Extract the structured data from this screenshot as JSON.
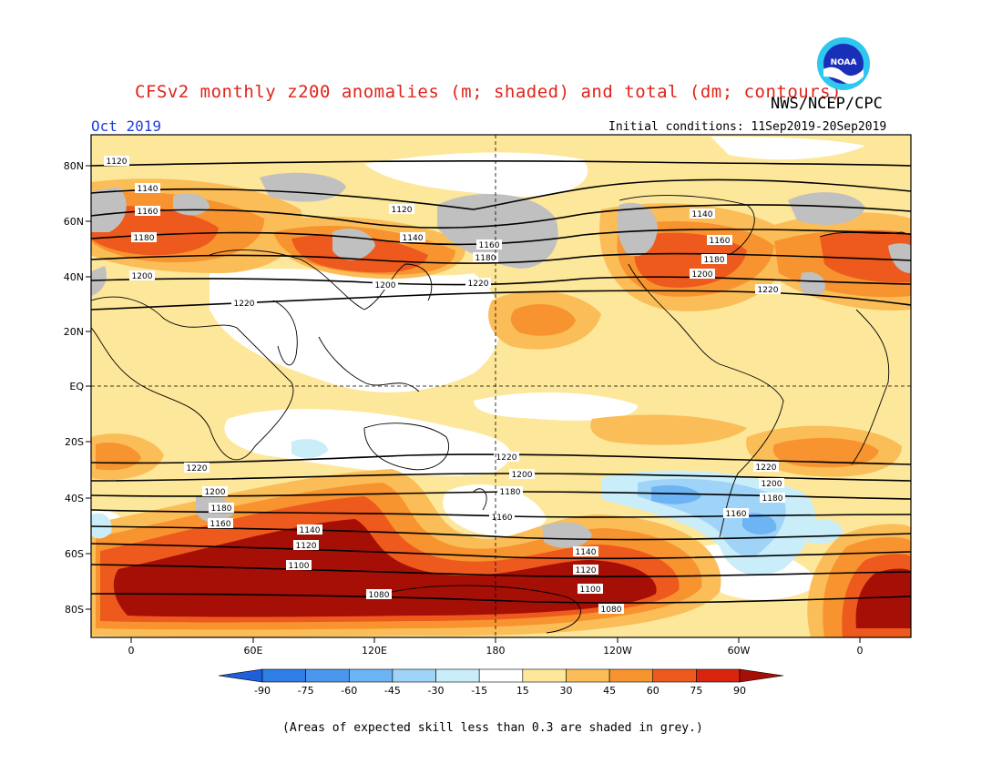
{
  "title": "CFSv2 monthly z200 anomalies (m; shaded) and total (dm; contours)",
  "month": "Oct 2019",
  "agency": "NWS/NCEP/CPC",
  "initial_conditions": "Initial conditions: 11Sep2019-20Sep2019",
  "logo_text": "NOAA",
  "footnote": "(Areas of expected skill less than 0.3 are shaded in grey.)",
  "lat_labels": [
    "80N",
    "60N",
    "40N",
    "20N",
    "EQ",
    "20S",
    "40S",
    "60S",
    "80S"
  ],
  "lon_labels": [
    "0",
    "60E",
    "120E",
    "180",
    "120W",
    "60W",
    "0"
  ],
  "colorbar": {
    "labels": [
      "-90",
      "-75",
      "-60",
      "-45",
      "-30",
      "-15",
      "15",
      "30",
      "45",
      "60",
      "75",
      "90"
    ],
    "colors": [
      "#1f5fd9",
      "#2f7ee6",
      "#4a97ee",
      "#6db4f4",
      "#9fd3f7",
      "#c9eefa",
      "#ffffff",
      "#fde79a",
      "#fbbd57",
      "#f7942f",
      "#ee5a1d",
      "#d9250f",
      "#a50f05"
    ]
  },
  "contour_labels": [
    "1120",
    "1140",
    "1160",
    "1180",
    "1200",
    "1220",
    "1220",
    "1200",
    "1180",
    "1160",
    "1140",
    "1120",
    "1100",
    "1080",
    "1120",
    "1140",
    "1160",
    "1180",
    "1200",
    "1220",
    "1140",
    "1160",
    "1180",
    "1200",
    "1220",
    "1220",
    "1200",
    "1180",
    "1160",
    "1140",
    "1120",
    "1100",
    "1080",
    "1220",
    "1200",
    "1180",
    "1160"
  ]
}
